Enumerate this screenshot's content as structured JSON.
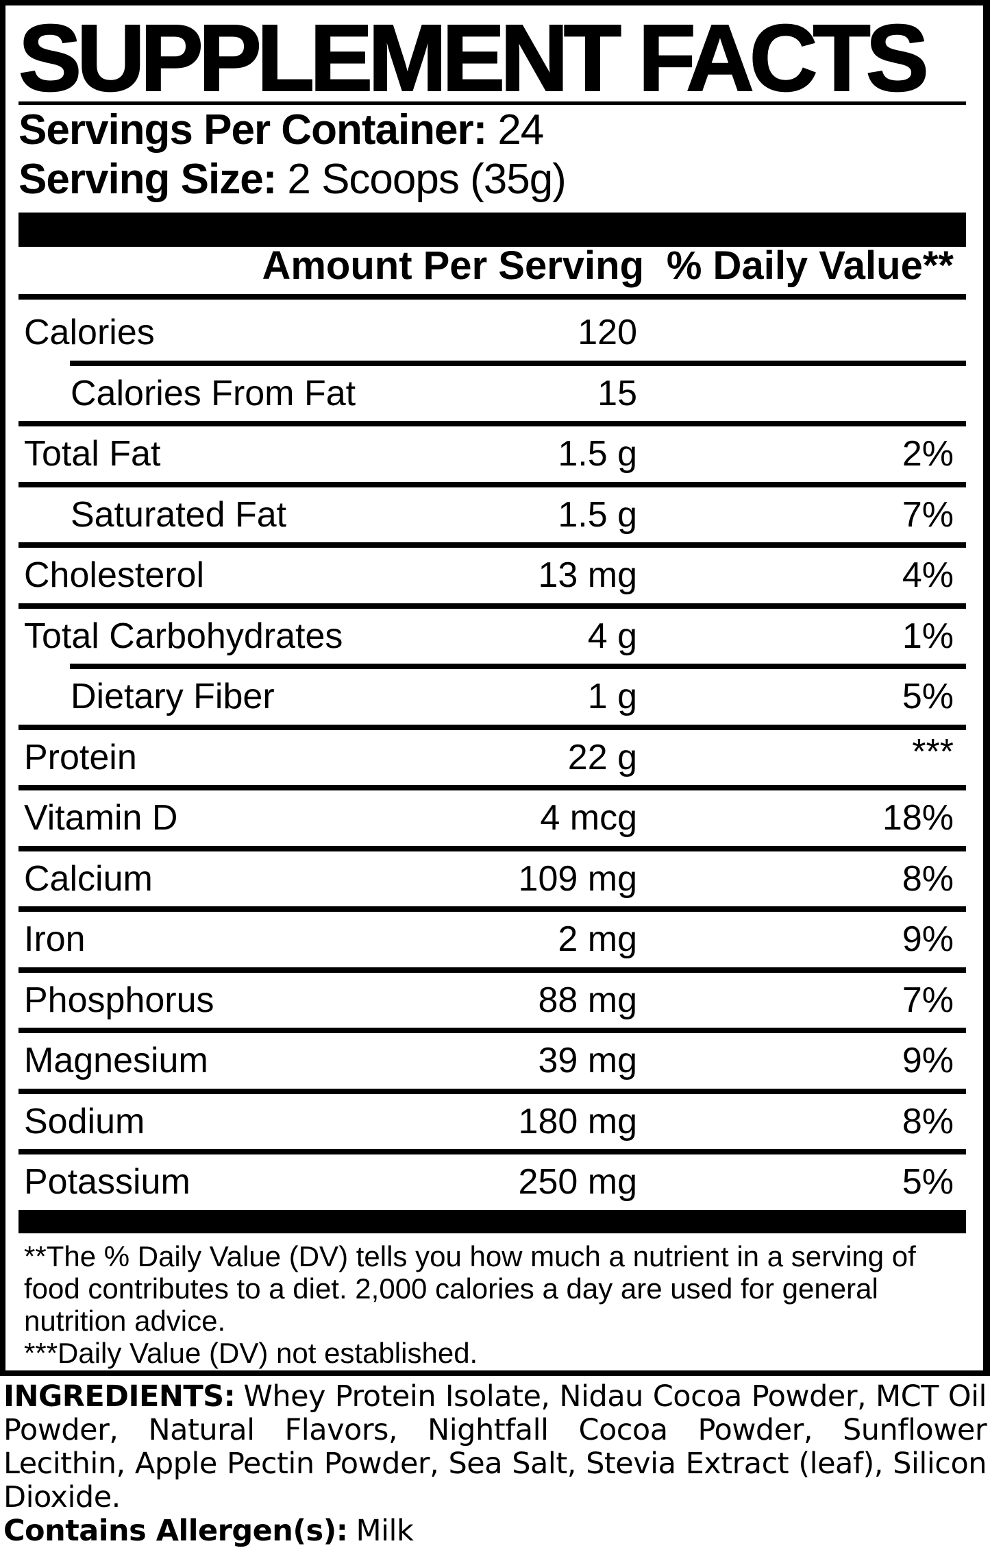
{
  "title": "SUPPLEMENT FACTS",
  "servings": {
    "label": "Servings Per Container:",
    "value": "24"
  },
  "serving_size": {
    "label": "Serving Size:",
    "value": "2 Scoops (35g)"
  },
  "table": {
    "amount_header": "Amount Per Serving",
    "dv_header": "% Daily Value**",
    "rows": [
      {
        "label": "Calories",
        "amount": "120",
        "dv": ""
      },
      {
        "label": "Calories From Fat",
        "amount": "15",
        "dv": ""
      },
      {
        "label": "Total Fat",
        "amount": "1.5 g",
        "dv": "2%"
      },
      {
        "label": "Saturated Fat",
        "amount": "1.5 g",
        "dv": "7%"
      },
      {
        "label": "Cholesterol",
        "amount": "13 mg",
        "dv": "4%"
      },
      {
        "label": "Total Carbohydrates",
        "amount": "4 g",
        "dv": "1%"
      },
      {
        "label": "Dietary Fiber",
        "amount": "1 g",
        "dv": "5%"
      },
      {
        "label": "Protein",
        "amount": "22 g",
        "dv": "***"
      },
      {
        "label": "Vitamin D",
        "amount": "4 mcg",
        "dv": "18%"
      },
      {
        "label": "Calcium",
        "amount": "109 mg",
        "dv": "8%"
      },
      {
        "label": "Iron",
        "amount": "2 mg",
        "dv": "9%"
      },
      {
        "label": "Phosphorus",
        "amount": "88 mg",
        "dv": "7%"
      },
      {
        "label": "Magnesium",
        "amount": "39 mg",
        "dv": "9%"
      },
      {
        "label": "Sodium",
        "amount": "180 mg",
        "dv": "8%"
      },
      {
        "label": "Potassium",
        "amount": "250 mg",
        "dv": "5%"
      }
    ]
  },
  "footnotes": {
    "lines": [
      "**The % Daily Value (DV) tells you how much a nutrient in a serving of",
      "food contributes to a diet. 2,000 calories a day are used for general",
      "nutrition advice.",
      "***Daily Value (DV) not established."
    ]
  },
  "ingredients": {
    "label": "INGREDIENTS:",
    "text": "Whey Protein Isolate, Nidau Cocoa Powder, MCT Oil Powder, Natural Flavors, Nightfall Cocoa Powder, Sunflower Lecithin, Apple Pectin Powder, Sea Salt, Stevia Extract (leaf), Silicon Dioxide."
  },
  "allergen": {
    "label": "Contains Allergen(s):",
    "value": "Milk"
  },
  "colors": {
    "ink": "#000000",
    "paper": "#ffffff"
  }
}
